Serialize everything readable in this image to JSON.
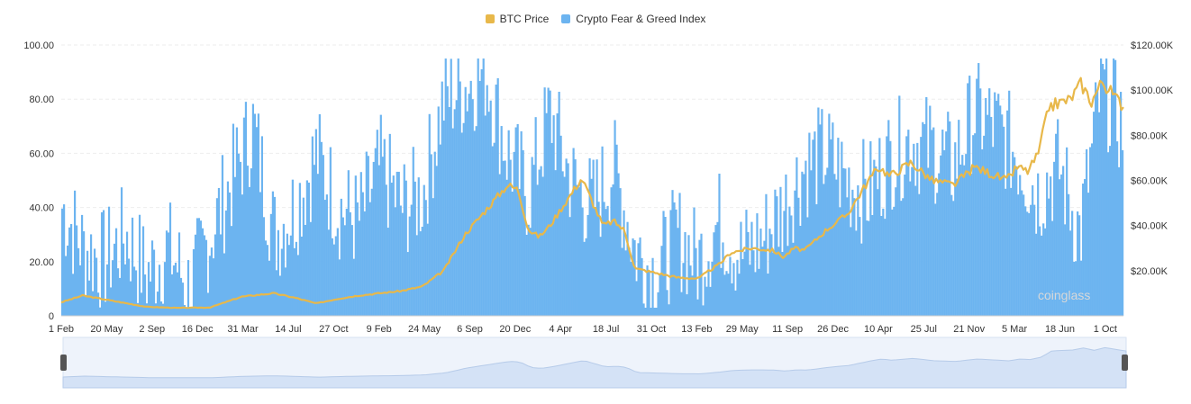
{
  "chart_data": {
    "type": "bar+line",
    "title": "",
    "legend": [
      {
        "name": "BTC Price",
        "color": "#e8b84a"
      },
      {
        "name": "Crypto Fear & Greed Index",
        "color": "#6cb4f0"
      }
    ],
    "x_tick_labels": [
      "1 Feb",
      "20 May",
      "2 Sep",
      "16 Dec",
      "31 Mar",
      "14 Jul",
      "27 Oct",
      "9 Feb",
      "24 May",
      "6 Sep",
      "20 Dec",
      "4 Apr",
      "18 Jul",
      "31 Oct",
      "13 Feb",
      "29 May",
      "11 Sep",
      "26 Dec",
      "10 Apr",
      "25 Jul",
      "21 Nov",
      "5 Mar",
      "18 Jun",
      "1 Oct"
    ],
    "y_left": {
      "ticks": [
        "100.00",
        "80.00",
        "60.00",
        "40.00",
        "20.00",
        "0"
      ],
      "range": [
        0,
        100
      ]
    },
    "y_right": {
      "ticks": [
        "$120.00K",
        "$100.00K",
        "$80.00K",
        "$60.00K",
        "$40.00K",
        "$20.00K"
      ],
      "range": [
        0,
        120000
      ]
    },
    "series": [
      {
        "name": "Crypto Fear & Greed Index",
        "kind": "bar",
        "color": "#6cb4f0",
        "x_fraction": [
          0,
          0.02,
          0.04,
          0.06,
          0.08,
          0.1,
          0.12,
          0.14,
          0.16,
          0.18,
          0.2,
          0.22,
          0.24,
          0.26,
          0.28,
          0.3,
          0.32,
          0.34,
          0.36,
          0.38,
          0.4,
          0.42,
          0.44,
          0.46,
          0.48,
          0.5,
          0.52,
          0.54,
          0.56,
          0.58,
          0.6,
          0.62,
          0.64,
          0.66,
          0.68,
          0.7,
          0.72,
          0.74,
          0.76,
          0.78,
          0.8,
          0.82,
          0.84,
          0.86,
          0.88,
          0.9,
          0.92,
          0.94,
          0.96,
          0.98,
          1.0
        ],
        "values": [
          40,
          25,
          20,
          30,
          15,
          25,
          10,
          30,
          50,
          70,
          30,
          40,
          60,
          40,
          35,
          55,
          40,
          45,
          80,
          85,
          90,
          60,
          45,
          75,
          50,
          40,
          55,
          25,
          15,
          30,
          20,
          35,
          22,
          28,
          40,
          55,
          60,
          50,
          45,
          58,
          65,
          62,
          55,
          75,
          70,
          60,
          45,
          55,
          30,
          85,
          70
        ]
      },
      {
        "name": "BTC Price",
        "kind": "line",
        "color": "#e8b84a",
        "x_fraction": [
          0,
          0.02,
          0.05,
          0.08,
          0.11,
          0.14,
          0.17,
          0.2,
          0.22,
          0.24,
          0.26,
          0.28,
          0.3,
          0.32,
          0.34,
          0.36,
          0.38,
          0.4,
          0.42,
          0.43,
          0.44,
          0.45,
          0.46,
          0.47,
          0.49,
          0.51,
          0.52,
          0.53,
          0.54,
          0.56,
          0.58,
          0.6,
          0.61,
          0.62,
          0.63,
          0.65,
          0.67,
          0.68,
          0.69,
          0.7,
          0.72,
          0.74,
          0.76,
          0.77,
          0.78,
          0.8,
          0.82,
          0.84,
          0.86,
          0.88,
          0.89,
          0.9,
          0.91,
          0.92,
          0.93,
          0.95,
          0.96,
          0.97,
          0.98,
          0.99,
          1.0
        ],
        "values": [
          6000,
          9000,
          6500,
          4000,
          3500,
          3700,
          8500,
          10000,
          8000,
          5500,
          7500,
          9000,
          10000,
          11000,
          13000,
          20000,
          36000,
          47000,
          58000,
          56000,
          38000,
          35000,
          40000,
          47000,
          61000,
          40000,
          42000,
          38000,
          21000,
          19000,
          17000,
          16500,
          20000,
          23000,
          28000,
          30000,
          29000,
          26000,
          30000,
          29000,
          38000,
          45000,
          60000,
          66000,
          62000,
          68000,
          60000,
          58000,
          66000,
          62000,
          60000,
          66000,
          64000,
          72000,
          93000,
          96000,
          103000,
          95000,
          104000,
          98000,
          93000
        ]
      }
    ],
    "watermark": "coinglass"
  }
}
